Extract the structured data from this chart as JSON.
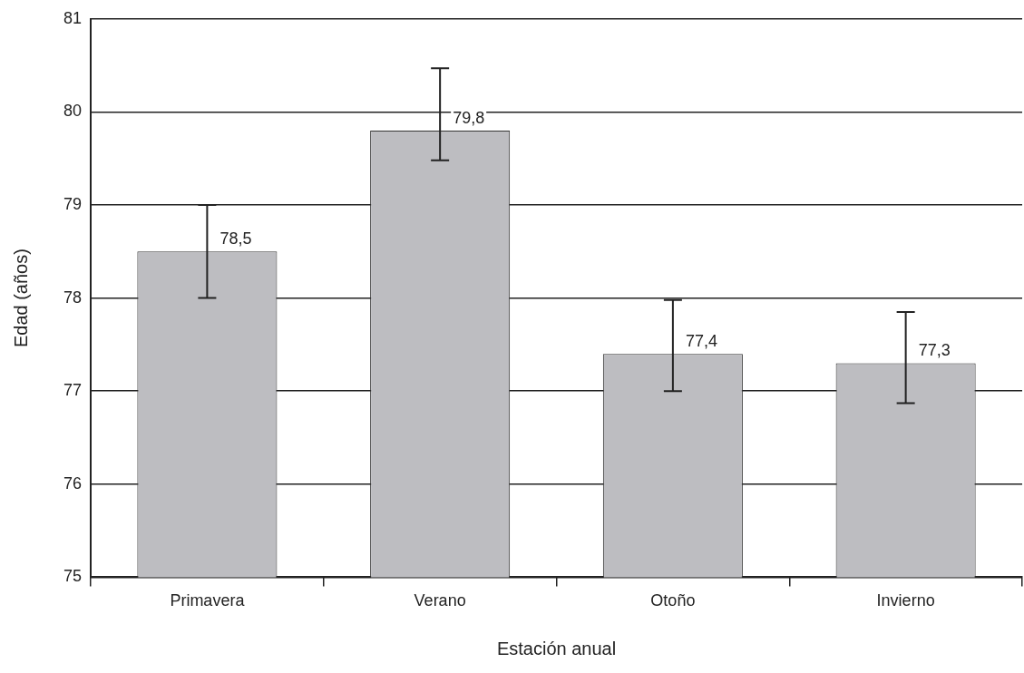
{
  "chart_data": {
    "type": "bar",
    "xlabel": "Estación anual",
    "ylabel": "Edad (años)",
    "categories": [
      "Primavera",
      "Verano",
      "Otoño",
      "Invierno"
    ],
    "series": [
      {
        "color": "#bdbdc1",
        "values": [
          78.5,
          79.8,
          77.4,
          77.3
        ],
        "errors": [
          [
            78.0,
            79.0
          ],
          [
            79.48,
            80.47
          ],
          [
            77.0,
            77.98
          ],
          [
            76.87,
            77.85
          ]
        ],
        "value_labels": [
          "78,5",
          "79,8",
          "77,4",
          "77,3"
        ]
      }
    ],
    "ylim": [
      75,
      81
    ],
    "yticks": [
      75,
      76,
      77,
      78,
      79,
      80,
      81
    ],
    "grid": "y",
    "legend": false
  }
}
